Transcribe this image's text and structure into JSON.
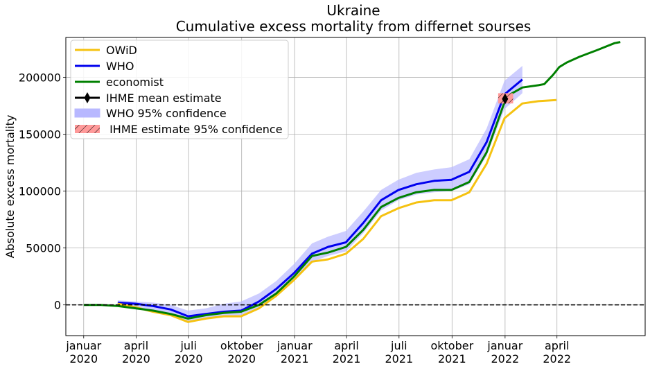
{
  "chart_data": {
    "type": "line",
    "title": "Ukraine",
    "subtitle": "Cumulative excess mortality from differnet sourses",
    "ylabel": "Absolute excess mortality",
    "xlabel": "",
    "ylim": [
      -27000,
      235000
    ],
    "xlim": [
      "2019-12-01",
      "2022-09-01"
    ],
    "grid": true,
    "legend_position": "top-left",
    "x_ticks": [
      {
        "date": "2020-01-01",
        "label": [
          "januar",
          "2020"
        ]
      },
      {
        "date": "2020-04-01",
        "label": [
          "april",
          "2020"
        ]
      },
      {
        "date": "2020-07-01",
        "label": [
          "juli",
          "2020"
        ]
      },
      {
        "date": "2020-10-01",
        "label": [
          "oktober",
          "2020"
        ]
      },
      {
        "date": "2021-01-01",
        "label": [
          "januar",
          "2021"
        ]
      },
      {
        "date": "2021-04-01",
        "label": [
          "april",
          "2021"
        ]
      },
      {
        "date": "2021-07-01",
        "label": [
          "juli",
          "2021"
        ]
      },
      {
        "date": "2021-10-01",
        "label": [
          "oktober",
          "2021"
        ]
      },
      {
        "date": "2022-01-01",
        "label": [
          "januar",
          "2022"
        ]
      },
      {
        "date": "2022-04-01",
        "label": [
          "april",
          "2022"
        ]
      }
    ],
    "y_ticks": [
      0,
      50000,
      100000,
      150000,
      200000
    ],
    "reference_line": {
      "y": 0,
      "style": "dashed",
      "color": "#000000"
    },
    "series": [
      {
        "name": "OWiD",
        "color": "#f5c211",
        "points": [
          [
            "2020-02-29",
            1000
          ],
          [
            "2020-03-31",
            -2000
          ],
          [
            "2020-04-30",
            -6000
          ],
          [
            "2020-05-31",
            -9000
          ],
          [
            "2020-06-30",
            -15000
          ],
          [
            "2020-07-31",
            -12000
          ],
          [
            "2020-08-31",
            -10000
          ],
          [
            "2020-09-30",
            -10000
          ],
          [
            "2020-10-31",
            -3000
          ],
          [
            "2020-11-30",
            8000
          ],
          [
            "2020-12-31",
            22000
          ],
          [
            "2021-01-31",
            38000
          ],
          [
            "2021-02-28",
            40000
          ],
          [
            "2021-03-31",
            45000
          ],
          [
            "2021-04-30",
            58000
          ],
          [
            "2021-05-31",
            78000
          ],
          [
            "2021-06-30",
            85000
          ],
          [
            "2021-07-31",
            90000
          ],
          [
            "2021-08-31",
            92000
          ],
          [
            "2021-09-30",
            92000
          ],
          [
            "2021-10-31",
            99000
          ],
          [
            "2021-11-30",
            124000
          ],
          [
            "2021-12-31",
            164000
          ],
          [
            "2022-01-31",
            177000
          ],
          [
            "2022-02-28",
            179000
          ],
          [
            "2022-03-31",
            180000
          ]
        ]
      },
      {
        "name": "WHO",
        "color": "#0000ee",
        "points": [
          [
            "2020-02-29",
            2000
          ],
          [
            "2020-03-31",
            1000
          ],
          [
            "2020-04-30",
            -1000
          ],
          [
            "2020-05-31",
            -4000
          ],
          [
            "2020-06-30",
            -10000
          ],
          [
            "2020-07-31",
            -8000
          ],
          [
            "2020-08-31",
            -6000
          ],
          [
            "2020-09-30",
            -5000
          ],
          [
            "2020-10-31",
            3000
          ],
          [
            "2020-11-30",
            14000
          ],
          [
            "2020-12-31",
            28000
          ],
          [
            "2021-01-31",
            45000
          ],
          [
            "2021-02-28",
            51000
          ],
          [
            "2021-03-31",
            55000
          ],
          [
            "2021-04-30",
            72000
          ],
          [
            "2021-05-31",
            92000
          ],
          [
            "2021-06-30",
            101000
          ],
          [
            "2021-07-31",
            106000
          ],
          [
            "2021-08-31",
            109000
          ],
          [
            "2021-09-30",
            110000
          ],
          [
            "2021-10-31",
            117000
          ],
          [
            "2021-11-30",
            143000
          ],
          [
            "2021-12-31",
            185000
          ],
          [
            "2022-01-31",
            198000
          ]
        ],
        "ci_lower": [
          -1000,
          -2000,
          -5000,
          -8000,
          -14000,
          -12000,
          -10000,
          -9000,
          -2000,
          8000,
          22000,
          38000,
          43000,
          47000,
          63000,
          83000,
          92000,
          97000,
          99000,
          100000,
          106000,
          131000,
          172000,
          186000
        ],
        "ci_upper": [
          4000,
          3000,
          2000,
          0,
          -5000,
          -3000,
          1000,
          3000,
          10000,
          21000,
          36000,
          54000,
          60000,
          65000,
          82000,
          101000,
          110000,
          116000,
          119000,
          121000,
          128000,
          155000,
          197000,
          210000
        ],
        "ci_name": "WHO 95% confidence",
        "ci_color": "#b8b8ff"
      },
      {
        "name": "economist",
        "color": "#008000",
        "points": [
          [
            "2020-01-01",
            0
          ],
          [
            "2020-01-31",
            0
          ],
          [
            "2020-02-29",
            -1000
          ],
          [
            "2020-03-31",
            -3000
          ],
          [
            "2020-04-30",
            -5000
          ],
          [
            "2020-05-31",
            -8000
          ],
          [
            "2020-06-30",
            -12000
          ],
          [
            "2020-07-31",
            -9000
          ],
          [
            "2020-08-31",
            -7000
          ],
          [
            "2020-09-30",
            -6000
          ],
          [
            "2020-10-31",
            0
          ],
          [
            "2020-11-30",
            10000
          ],
          [
            "2020-12-31",
            25000
          ],
          [
            "2021-01-31",
            43000
          ],
          [
            "2021-02-28",
            46000
          ],
          [
            "2021-03-31",
            51000
          ],
          [
            "2021-04-30",
            66000
          ],
          [
            "2021-05-31",
            86000
          ],
          [
            "2021-06-30",
            94000
          ],
          [
            "2021-07-31",
            99000
          ],
          [
            "2021-08-31",
            101000
          ],
          [
            "2021-09-30",
            101000
          ],
          [
            "2021-10-31",
            108000
          ],
          [
            "2021-11-30",
            134000
          ],
          [
            "2021-12-31",
            178000
          ],
          [
            "2022-01-10",
            185000
          ],
          [
            "2022-01-31",
            191000
          ],
          [
            "2022-02-28",
            193000
          ],
          [
            "2022-03-10",
            194000
          ],
          [
            "2022-03-25",
            202000
          ],
          [
            "2022-04-05",
            209000
          ],
          [
            "2022-04-18",
            213000
          ],
          [
            "2022-05-10",
            218000
          ],
          [
            "2022-06-10",
            224000
          ],
          [
            "2022-07-10",
            230000
          ],
          [
            "2022-07-20",
            231000
          ]
        ]
      }
    ],
    "ihme": {
      "mean_name": "IHME mean estimate",
      "ci_name": " IHME estimate 95% confidence",
      "date": "2022-01-01",
      "mean": 181000,
      "ci": [
        177000,
        186000
      ],
      "ci_date_range": [
        "2021-12-20",
        "2022-01-15"
      ],
      "mean_color": "#000000",
      "ci_color": "#ff9a9a"
    }
  }
}
